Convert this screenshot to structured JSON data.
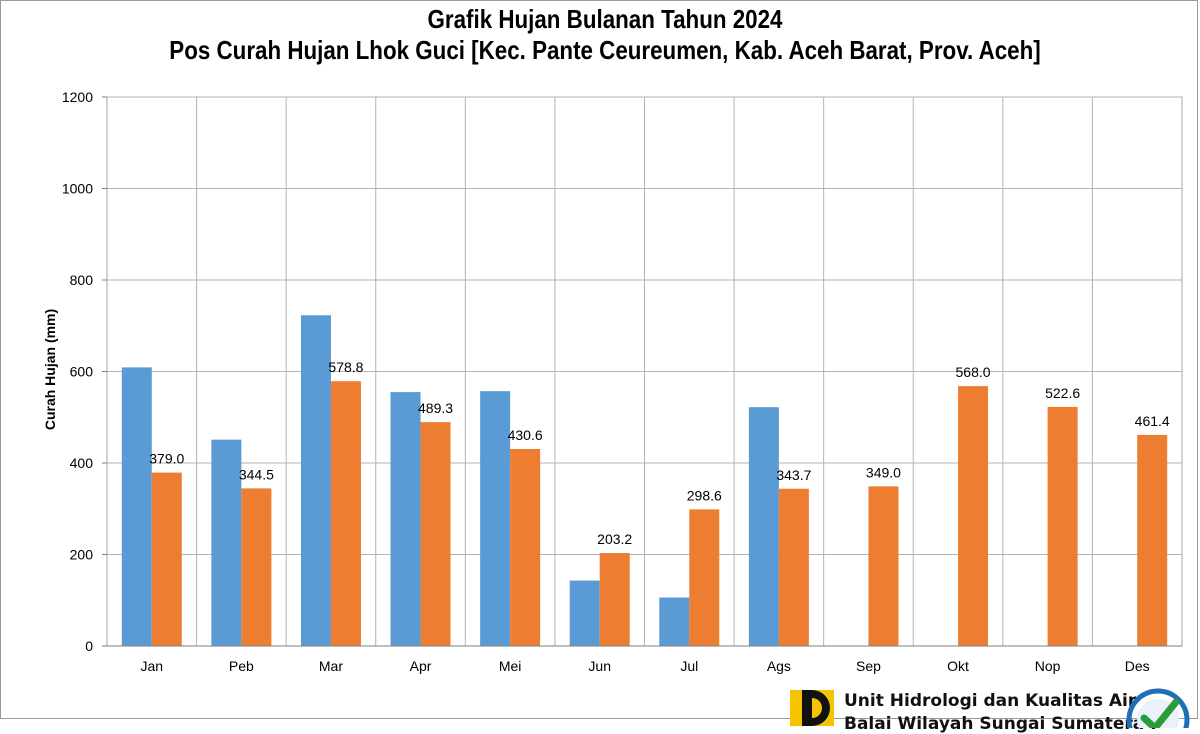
{
  "chart_data": {
    "type": "bar",
    "title": "Grafik Hujan Bulanan Tahun 2024",
    "subtitle": "Pos Curah Hujan Lhok Guci [Kec. Pante Ceureumen, Kab. Aceh Barat, Prov. Aceh]",
    "ylabel": "Curah Hujan (mm)",
    "xlabel": "",
    "ylim": [
      0,
      1200
    ],
    "yticks": [
      0,
      200,
      400,
      600,
      800,
      1000,
      1200
    ],
    "grid": true,
    "categories": [
      "Jan",
      "Peb",
      "Mar",
      "Apr",
      "Mei",
      "Jun",
      "Jul",
      "Ags",
      "Sep",
      "Okt",
      "Nop",
      "Des"
    ],
    "series": [
      {
        "color": "#5b9bd5",
        "values": [
          609,
          451,
          723,
          555,
          557,
          143,
          106,
          522,
          null,
          null,
          null,
          null
        ]
      },
      {
        "color": "#ed7d31",
        "values": [
          379.0,
          344.5,
          578.8,
          489.3,
          430.6,
          203.2,
          298.6,
          343.7,
          349.0,
          568.0,
          522.6,
          461.4
        ],
        "data_labels": [
          "379.0",
          "344.5",
          "578.8",
          "489.3",
          "430.6",
          "203.2",
          "298.6",
          "343.7",
          "349.0",
          "568.0",
          "522.6",
          "461.4"
        ]
      }
    ]
  },
  "footer": {
    "org_name": "Unit Hidrologi dan Kualitas Air",
    "org_sub": "Balai Wilayah Sungai Sumatera I",
    "logo_colors": {
      "yellow": "#f5c400",
      "black": "#111111"
    },
    "badge_colors": {
      "ring": "#1f6fb7",
      "check": "#2a9d3a"
    },
    "badge_icon": "iso-certification-badge-icon"
  }
}
